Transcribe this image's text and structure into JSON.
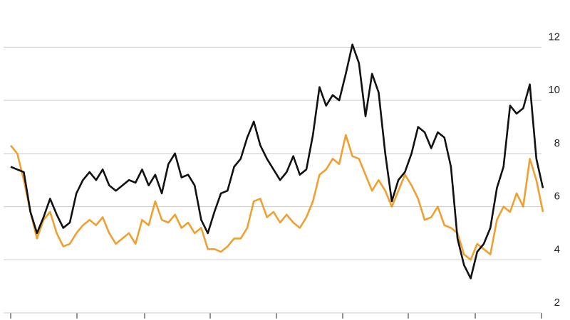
{
  "chart_data": {
    "type": "line",
    "categories": [
      null,
      null,
      null,
      null,
      null,
      null,
      null,
      null,
      null,
      null,
      null,
      null,
      null,
      null,
      null,
      null,
      null,
      null,
      null,
      null,
      null,
      null,
      null,
      null,
      null,
      null,
      null,
      null,
      null,
      null,
      null,
      null,
      null,
      null,
      null,
      null,
      null,
      null,
      null,
      null,
      null,
      null,
      null,
      null,
      null,
      null,
      null,
      null,
      null,
      null,
      null,
      null,
      null,
      null,
      null,
      null,
      null,
      null,
      null,
      null,
      null,
      null,
      null,
      null,
      null,
      null,
      null,
      null,
      null,
      null,
      null,
      null,
      null,
      null,
      null,
      null,
      null,
      null,
      null,
      null,
      null,
      null
    ],
    "series": [
      {
        "color": "#111111",
        "values": [
          7.5,
          7.4,
          7.3,
          5.8,
          5.0,
          5.6,
          6.3,
          5.7,
          5.2,
          5.4,
          6.5,
          7.0,
          7.3,
          7.0,
          7.4,
          6.8,
          6.6,
          6.8,
          7.0,
          6.9,
          7.4,
          6.8,
          7.2,
          6.5,
          7.6,
          8.0,
          7.1,
          7.2,
          6.8,
          5.5,
          5.0,
          5.8,
          6.5,
          6.6,
          7.5,
          7.8,
          8.6,
          9.2,
          8.3,
          7.8,
          7.4,
          7.0,
          7.3,
          7.9,
          7.2,
          7.4,
          8.7,
          10.5,
          9.8,
          10.2,
          10.0,
          11.0,
          12.1,
          11.4,
          9.4,
          11.0,
          10.3,
          8.0,
          6.2,
          7.0,
          7.3,
          8.0,
          9.0,
          8.8,
          8.2,
          8.8,
          8.6,
          7.5,
          4.8,
          3.8,
          3.3,
          4.3,
          4.6,
          5.2,
          6.7,
          7.5,
          9.8,
          9.5,
          9.7,
          10.6,
          7.8,
          6.7
        ]
      },
      {
        "color": "#f0a030",
        "values": [
          8.3,
          8.0,
          7.0,
          5.8,
          4.8,
          5.5,
          5.8,
          5.0,
          4.5,
          4.6,
          5.0,
          5.3,
          5.5,
          5.3,
          5.6,
          5.0,
          4.6,
          4.8,
          5.0,
          4.6,
          5.5,
          5.3,
          6.2,
          5.5,
          5.4,
          5.7,
          5.2,
          5.4,
          5.0,
          5.2,
          4.4,
          4.4,
          4.3,
          4.5,
          4.8,
          4.8,
          5.2,
          6.2,
          6.3,
          5.6,
          5.8,
          5.4,
          5.7,
          5.4,
          5.2,
          5.6,
          6.2,
          7.2,
          7.4,
          7.8,
          7.6,
          8.7,
          7.9,
          7.8,
          7.2,
          6.6,
          7.0,
          6.6,
          6.0,
          6.6,
          7.2,
          6.8,
          6.3,
          5.5,
          5.6,
          6.0,
          5.3,
          5.2,
          5.0,
          4.2,
          4.0,
          4.6,
          4.4,
          4.2,
          5.5,
          6.0,
          5.8,
          6.5,
          6.0,
          7.8,
          7.0,
          5.8
        ]
      }
    ],
    "ylim": [
      2,
      12.6
    ],
    "yticks": [
      2,
      4,
      6,
      8,
      10,
      12
    ],
    "grid": true
  }
}
